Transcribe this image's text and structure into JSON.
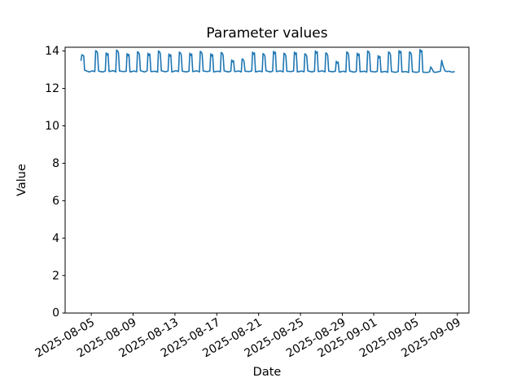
{
  "chart_data": {
    "type": "line",
    "title": "Parameter values",
    "xlabel": "Date",
    "ylabel": "Value",
    "grid": false,
    "legend": "none",
    "line_color": "#1f77b4",
    "spine_color": "#000000",
    "background_color": "#ffffff",
    "ylim": [
      0,
      14.2
    ],
    "yticks": [
      0,
      2,
      4,
      6,
      8,
      10,
      12,
      14
    ],
    "x_unit": "days since 2025-08-04 00:00",
    "xlim_days": [
      -1.5,
      37.1
    ],
    "xticks": [
      {
        "label": "2025-08-05",
        "day": 1
      },
      {
        "label": "2025-08-09",
        "day": 5
      },
      {
        "label": "2025-08-13",
        "day": 9
      },
      {
        "label": "2025-08-17",
        "day": 13
      },
      {
        "label": "2025-08-21",
        "day": 17
      },
      {
        "label": "2025-08-25",
        "day": 21
      },
      {
        "label": "2025-08-29",
        "day": 25
      },
      {
        "label": "2025-09-01",
        "day": 28
      },
      {
        "label": "2025-09-05",
        "day": 32
      },
      {
        "label": "2025-09-09",
        "day": 36
      }
    ],
    "series": [
      {
        "name": "Parameter values",
        "color": "#1f77b4",
        "points": [
          [
            0.02,
            13.5
          ],
          [
            0.1,
            13.8
          ],
          [
            0.28,
            13.74
          ],
          [
            0.36,
            12.98
          ],
          [
            0.6,
            12.92
          ],
          [
            0.82,
            12.88
          ],
          [
            1.1,
            12.94
          ],
          [
            1.34,
            12.9
          ],
          [
            1.42,
            14.02
          ],
          [
            1.52,
            13.98
          ],
          [
            1.6,
            13.88
          ],
          [
            1.7,
            12.92
          ],
          [
            2.1,
            12.88
          ],
          [
            2.34,
            12.93
          ],
          [
            2.42,
            13.9
          ],
          [
            2.52,
            13.78
          ],
          [
            2.6,
            13.86
          ],
          [
            2.7,
            12.9
          ],
          [
            3.1,
            12.95
          ],
          [
            3.34,
            12.88
          ],
          [
            3.42,
            14.05
          ],
          [
            3.52,
            14.0
          ],
          [
            3.6,
            13.9
          ],
          [
            3.7,
            12.93
          ],
          [
            4.1,
            12.9
          ],
          [
            4.34,
            12.92
          ],
          [
            4.42,
            13.86
          ],
          [
            4.52,
            13.74
          ],
          [
            4.6,
            13.82
          ],
          [
            4.7,
            12.88
          ],
          [
            5.1,
            12.93
          ],
          [
            5.34,
            12.89
          ],
          [
            5.42,
            13.96
          ],
          [
            5.52,
            13.92
          ],
          [
            5.6,
            13.82
          ],
          [
            5.7,
            12.95
          ],
          [
            6.1,
            12.88
          ],
          [
            6.34,
            12.94
          ],
          [
            6.42,
            13.88
          ],
          [
            6.52,
            13.76
          ],
          [
            6.6,
            13.84
          ],
          [
            6.7,
            12.9
          ],
          [
            7.1,
            12.92
          ],
          [
            7.34,
            12.87
          ],
          [
            7.42,
            14.0
          ],
          [
            7.52,
            13.96
          ],
          [
            7.6,
            13.86
          ],
          [
            7.7,
            12.94
          ],
          [
            8.1,
            12.89
          ],
          [
            8.34,
            12.93
          ],
          [
            8.42,
            13.84
          ],
          [
            8.52,
            13.72
          ],
          [
            8.6,
            13.8
          ],
          [
            8.7,
            12.88
          ],
          [
            9.1,
            12.95
          ],
          [
            9.34,
            12.9
          ],
          [
            9.42,
            13.94
          ],
          [
            9.52,
            13.9
          ],
          [
            9.6,
            13.8
          ],
          [
            9.7,
            12.92
          ],
          [
            10.1,
            12.88
          ],
          [
            10.34,
            12.92
          ],
          [
            10.42,
            13.88
          ],
          [
            10.52,
            13.76
          ],
          [
            10.6,
            13.84
          ],
          [
            10.7,
            12.9
          ],
          [
            11.1,
            12.94
          ],
          [
            11.34,
            12.88
          ],
          [
            11.42,
            13.98
          ],
          [
            11.52,
            13.94
          ],
          [
            11.6,
            13.84
          ],
          [
            11.7,
            12.93
          ],
          [
            12.1,
            12.9
          ],
          [
            12.34,
            12.93
          ],
          [
            12.42,
            13.85
          ],
          [
            12.52,
            13.73
          ],
          [
            12.6,
            13.81
          ],
          [
            12.7,
            12.88
          ],
          [
            13.1,
            12.92
          ],
          [
            13.34,
            12.89
          ],
          [
            13.42,
            13.92
          ],
          [
            13.52,
            13.88
          ],
          [
            13.6,
            13.78
          ],
          [
            13.7,
            12.94
          ],
          [
            14.1,
            12.88
          ],
          [
            14.34,
            12.92
          ],
          [
            14.42,
            13.52
          ],
          [
            14.52,
            13.42
          ],
          [
            14.6,
            13.48
          ],
          [
            14.7,
            12.9
          ],
          [
            15.1,
            12.93
          ],
          [
            15.34,
            12.88
          ],
          [
            15.42,
            13.58
          ],
          [
            15.52,
            13.54
          ],
          [
            15.6,
            13.44
          ],
          [
            15.7,
            12.92
          ],
          [
            16.1,
            12.9
          ],
          [
            16.34,
            12.94
          ],
          [
            16.42,
            13.94
          ],
          [
            16.52,
            13.82
          ],
          [
            16.6,
            13.9
          ],
          [
            16.7,
            12.88
          ],
          [
            17.1,
            12.93
          ],
          [
            17.34,
            12.89
          ],
          [
            17.42,
            13.86
          ],
          [
            17.52,
            13.82
          ],
          [
            17.6,
            13.72
          ],
          [
            17.7,
            12.95
          ],
          [
            18.1,
            12.88
          ],
          [
            18.34,
            12.92
          ],
          [
            18.42,
            13.98
          ],
          [
            18.52,
            13.86
          ],
          [
            18.6,
            13.94
          ],
          [
            18.7,
            12.9
          ],
          [
            19.1,
            12.94
          ],
          [
            19.34,
            12.88
          ],
          [
            19.42,
            13.88
          ],
          [
            19.52,
            13.84
          ],
          [
            19.6,
            13.74
          ],
          [
            19.7,
            12.92
          ],
          [
            20.1,
            12.9
          ],
          [
            20.34,
            12.93
          ],
          [
            20.42,
            13.94
          ],
          [
            20.52,
            13.82
          ],
          [
            20.6,
            13.9
          ],
          [
            20.7,
            12.88
          ],
          [
            21.1,
            12.93
          ],
          [
            21.34,
            12.89
          ],
          [
            21.42,
            13.85
          ],
          [
            21.52,
            13.81
          ],
          [
            21.6,
            13.71
          ],
          [
            21.7,
            12.94
          ],
          [
            22.1,
            12.88
          ],
          [
            22.34,
            12.92
          ],
          [
            22.42,
            14.0
          ],
          [
            22.52,
            13.88
          ],
          [
            22.6,
            13.96
          ],
          [
            22.7,
            12.9
          ],
          [
            23.1,
            12.94
          ],
          [
            23.34,
            12.88
          ],
          [
            23.42,
            13.9
          ],
          [
            23.52,
            13.86
          ],
          [
            23.6,
            13.76
          ],
          [
            23.7,
            12.92
          ],
          [
            24.1,
            12.89
          ],
          [
            24.34,
            12.92
          ],
          [
            24.42,
            13.45
          ],
          [
            24.52,
            13.35
          ],
          [
            24.6,
            13.41
          ],
          [
            24.7,
            12.87
          ],
          [
            25.1,
            12.92
          ],
          [
            25.34,
            12.88
          ],
          [
            25.42,
            13.95
          ],
          [
            25.52,
            13.91
          ],
          [
            25.6,
            13.81
          ],
          [
            25.7,
            12.93
          ],
          [
            26.1,
            12.87
          ],
          [
            26.34,
            12.91
          ],
          [
            26.42,
            13.88
          ],
          [
            26.52,
            13.76
          ],
          [
            26.6,
            13.84
          ],
          [
            26.7,
            12.89
          ],
          [
            27.1,
            12.92
          ],
          [
            27.34,
            12.87
          ],
          [
            27.42,
            14.0
          ],
          [
            27.52,
            13.96
          ],
          [
            27.6,
            13.86
          ],
          [
            27.7,
            12.91
          ],
          [
            28.1,
            12.88
          ],
          [
            28.34,
            12.91
          ],
          [
            28.42,
            13.75
          ],
          [
            28.52,
            13.63
          ],
          [
            28.6,
            13.71
          ],
          [
            28.7,
            12.87
          ],
          [
            29.1,
            12.91
          ],
          [
            29.34,
            12.86
          ],
          [
            29.42,
            13.95
          ],
          [
            29.52,
            13.91
          ],
          [
            29.6,
            13.81
          ],
          [
            29.7,
            12.9
          ],
          [
            30.1,
            12.86
          ],
          [
            30.34,
            12.9
          ],
          [
            30.42,
            14.02
          ],
          [
            30.52,
            13.9
          ],
          [
            30.6,
            13.98
          ],
          [
            30.7,
            12.88
          ],
          [
            31.1,
            12.9
          ],
          [
            31.34,
            12.85
          ],
          [
            31.42,
            13.95
          ],
          [
            31.52,
            13.91
          ],
          [
            31.6,
            13.81
          ],
          [
            31.7,
            12.89
          ],
          [
            32.1,
            12.86
          ],
          [
            32.34,
            12.89
          ],
          [
            32.42,
            14.08
          ],
          [
            32.52,
            13.96
          ],
          [
            32.6,
            14.02
          ],
          [
            32.7,
            12.87
          ],
          [
            33.1,
            12.85
          ],
          [
            33.35,
            12.89
          ],
          [
            33.45,
            13.15
          ],
          [
            33.58,
            13.04
          ],
          [
            33.72,
            12.88
          ],
          [
            33.9,
            12.86
          ],
          [
            34.1,
            12.88
          ],
          [
            34.38,
            12.92
          ],
          [
            34.5,
            13.5
          ],
          [
            34.62,
            13.22
          ],
          [
            34.8,
            12.95
          ],
          [
            35.0,
            12.9
          ],
          [
            35.2,
            12.92
          ],
          [
            35.45,
            12.87
          ],
          [
            35.7,
            12.89
          ]
        ]
      }
    ]
  }
}
